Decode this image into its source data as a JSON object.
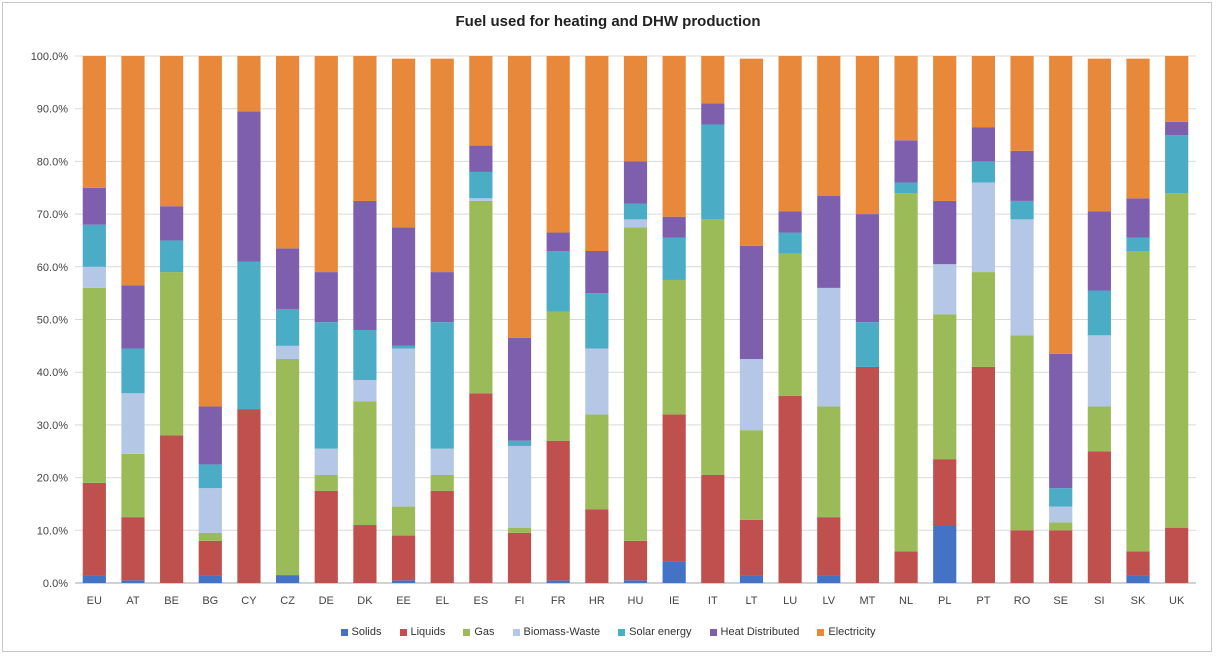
{
  "chart_data": {
    "type": "bar",
    "stacked": true,
    "title": "Fuel used for heating and DHW production",
    "xlabel": "",
    "ylabel": "",
    "ylim": [
      0,
      100
    ],
    "yticks": [
      "0.0%",
      "10.0%",
      "20.0%",
      "30.0%",
      "40.0%",
      "50.0%",
      "60.0%",
      "70.0%",
      "80.0%",
      "90.0%",
      "100.0%"
    ],
    "grid": "horizontal",
    "legend_position": "bottom",
    "categories": [
      "EU",
      "AT",
      "BE",
      "BG",
      "CY",
      "CZ",
      "DE",
      "DK",
      "EE",
      "EL",
      "ES",
      "FI",
      "FR",
      "HR",
      "HU",
      "IE",
      "IT",
      "LT",
      "LU",
      "LV",
      "MT",
      "NL",
      "PL",
      "PT",
      "RO",
      "SE",
      "SI",
      "SK",
      "UK"
    ],
    "series": [
      {
        "name": "Solids",
        "color": "#4472C4",
        "values": [
          1.5,
          0.5,
          0,
          1.5,
          0,
          1.5,
          0,
          0,
          0.5,
          0,
          0,
          0,
          0.5,
          0,
          0.5,
          4,
          0,
          1.5,
          0,
          1.5,
          0,
          0,
          11,
          0,
          0,
          0,
          0,
          1.5,
          0
        ]
      },
      {
        "name": "Liquids",
        "color": "#C0504D",
        "values": [
          17.5,
          12,
          28,
          6.5,
          33,
          0,
          17.5,
          11,
          8.5,
          17.5,
          36,
          9.5,
          26.5,
          14,
          7.5,
          28,
          20.5,
          10.5,
          35.5,
          11,
          41,
          6,
          12.5,
          41,
          10,
          10,
          25,
          4.5,
          10.5
        ]
      },
      {
        "name": "Gas",
        "color": "#9BBB59",
        "values": [
          37,
          12,
          31,
          1.5,
          0,
          41,
          3,
          23.5,
          5.5,
          3,
          36.5,
          1,
          24.5,
          18,
          59.5,
          25.5,
          48.5,
          17,
          27,
          21,
          0,
          68,
          27.5,
          18,
          37,
          1.5,
          8.5,
          57,
          63.5
        ]
      },
      {
        "name": "Biomass-Waste",
        "color": "#B4C7E7",
        "values": [
          4,
          11.5,
          0,
          8.5,
          0,
          2.5,
          5,
          4,
          30,
          5,
          0.5,
          15.5,
          0,
          12.5,
          1.5,
          0,
          0,
          13.5,
          0,
          22.5,
          0,
          0,
          9.5,
          17,
          22,
          3,
          13.5,
          0,
          0
        ]
      },
      {
        "name": "Solar energy",
        "color": "#4BACC6",
        "values": [
          8,
          8.5,
          6,
          4.5,
          28,
          7,
          24,
          9.5,
          0.5,
          24,
          5,
          1,
          11.5,
          10.5,
          3,
          8,
          18,
          0,
          4,
          0,
          8.5,
          2,
          0,
          4,
          3.5,
          3.5,
          8.5,
          2.5,
          11
        ]
      },
      {
        "name": "Heat Distributed",
        "color": "#7E5FAE",
        "values": [
          7,
          12,
          6.5,
          11,
          28.5,
          11.5,
          9.5,
          24.5,
          22.5,
          9.5,
          5,
          19.5,
          3.5,
          8,
          8,
          4,
          4,
          21.5,
          4,
          17.5,
          20.5,
          8,
          12,
          6.5,
          9.5,
          25.5,
          15,
          7.5,
          2.5
        ]
      },
      {
        "name": "Electricity",
        "color": "#E8883A",
        "values": [
          25,
          43.5,
          28.5,
          66.5,
          10.5,
          36.5,
          41,
          27.5,
          32,
          40.5,
          17,
          53.5,
          33.5,
          37,
          20,
          30.5,
          9,
          35.5,
          29.5,
          26.5,
          30,
          16,
          27.5,
          13.5,
          18,
          56.5,
          29,
          26.5,
          12.5
        ]
      }
    ]
  }
}
